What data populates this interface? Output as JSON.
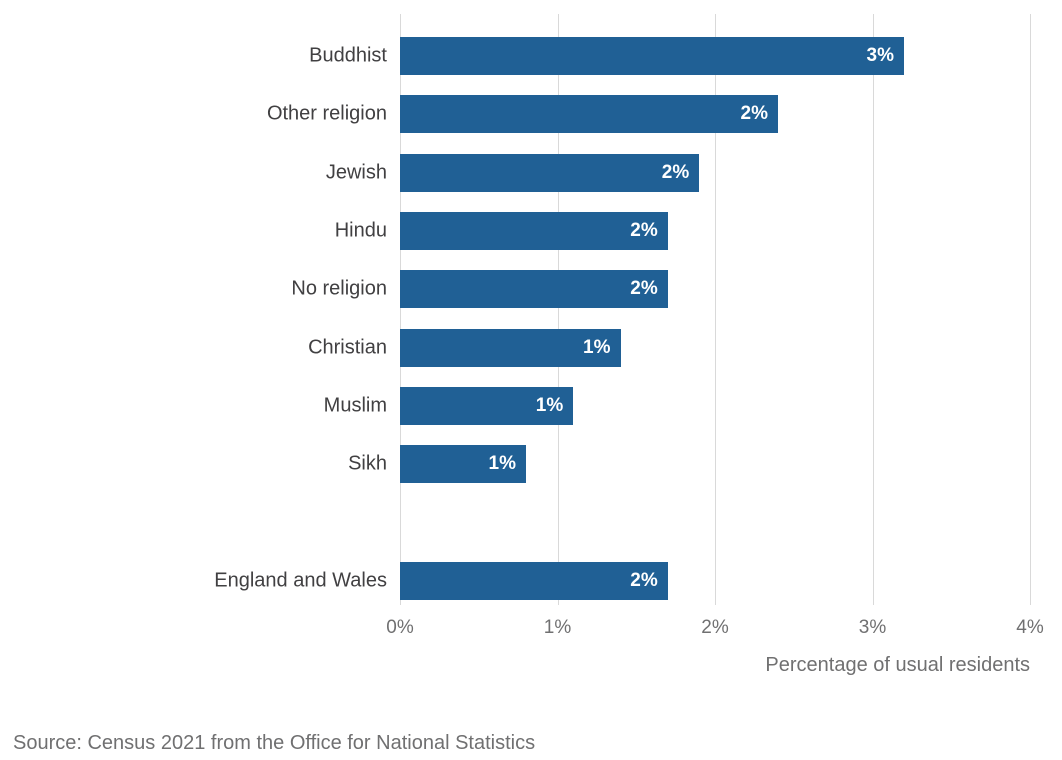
{
  "chart_data": {
    "type": "bar",
    "orientation": "horizontal",
    "categories": [
      "Buddhist",
      "Other religion",
      "Jewish",
      "Hindu",
      "No religion",
      "Christian",
      "Muslim",
      "Sikh",
      "England and Wales"
    ],
    "values": [
      3.2,
      2.4,
      1.9,
      1.7,
      1.7,
      1.4,
      1.1,
      0.8,
      1.7
    ],
    "bar_labels": [
      "3%",
      "2%",
      "2%",
      "2%",
      "2%",
      "1%",
      "1%",
      "1%",
      "2%"
    ],
    "group_break_index": 8,
    "xlabel": "Percentage of usual residents",
    "xlim": [
      0,
      4
    ],
    "x_ticks": [
      "0%",
      "1%",
      "2%",
      "3%",
      "4%"
    ],
    "grid": true,
    "legend": "none",
    "colors": {
      "bar": "#206095",
      "text": "#414042",
      "muted": "#707071",
      "gridline": "#d9d9d9"
    },
    "source": "Source: Census 2021 from the Office for National Statistics"
  }
}
